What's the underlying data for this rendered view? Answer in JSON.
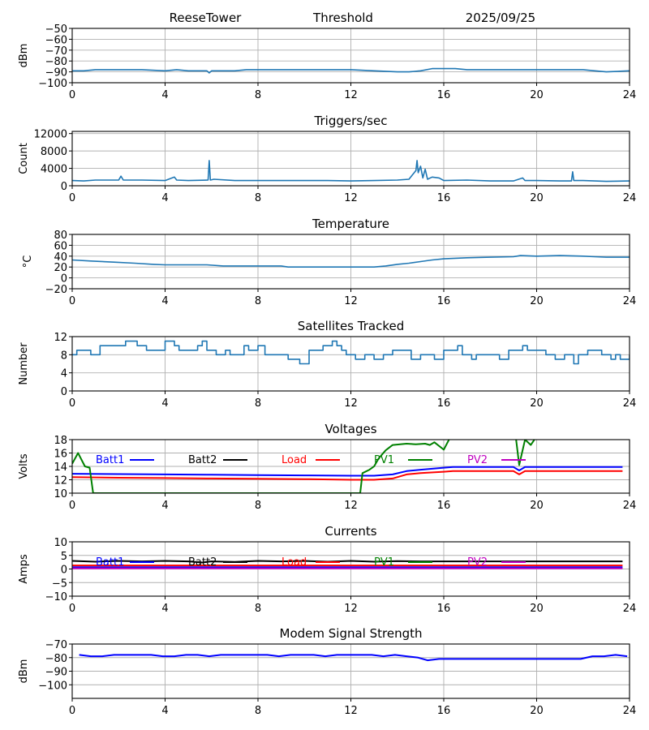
{
  "header": {
    "station": "ReeseTower",
    "mode": "Threshold",
    "date": "2025/09/25"
  },
  "colors": {
    "default": "#1f77b4",
    "batt1": "#0000ff",
    "batt2": "#000000",
    "load": "#ff0000",
    "pv1": "#008000",
    "pv2": "#bf00bf",
    "grid": "#b0b0b0"
  },
  "chart_data": [
    {
      "type": "line",
      "title": "",
      "xlabel": "",
      "ylabel": "dBm",
      "xlim": [
        0,
        24
      ],
      "ylim": [
        -100,
        -50
      ],
      "xticks": [
        "0",
        "4",
        "8",
        "12",
        "16",
        "20",
        "24"
      ],
      "yticks": [
        "-50",
        "-60",
        "-70",
        "-80",
        "-90",
        "-100"
      ],
      "grid": true,
      "series": [
        {
          "name": "Threshold",
          "color": "#1f77b4",
          "x": [
            0,
            0.5,
            1,
            2,
            3,
            4,
            4.5,
            5,
            5.8,
            5.9,
            6,
            7,
            7.5,
            8,
            9,
            10,
            11,
            12,
            13,
            14,
            14.5,
            15,
            15.5,
            16,
            16.5,
            17,
            18,
            19,
            20,
            21,
            22,
            22.5,
            23,
            24
          ],
          "y": [
            -89,
            -89,
            -88,
            -88,
            -88,
            -89,
            -88,
            -89,
            -89,
            -91,
            -89,
            -89,
            -88,
            -88,
            -88,
            -88,
            -88,
            -88,
            -89,
            -90,
            -90,
            -89,
            -87,
            -87,
            -87,
            -88,
            -88,
            -88,
            -88,
            -88,
            -88,
            -89,
            -90,
            -89
          ]
        }
      ]
    },
    {
      "type": "line",
      "title": "Triggers/sec",
      "xlabel": "",
      "ylabel": "Count",
      "xlim": [
        0,
        24
      ],
      "ylim": [
        0,
        12500
      ],
      "xticks": [
        "0",
        "4",
        "8",
        "12",
        "16",
        "20",
        "24"
      ],
      "yticks": [
        "12000",
        "8000",
        "4000",
        "0"
      ],
      "grid": true,
      "series": [
        {
          "name": "Triggers",
          "color": "#1f77b4",
          "x": [
            0,
            0.5,
            1,
            2,
            2.1,
            2.2,
            3,
            4,
            4.4,
            4.5,
            5,
            5.85,
            5.9,
            5.95,
            6.1,
            7,
            8,
            9,
            10,
            11,
            12,
            13,
            14,
            14.5,
            14.8,
            14.85,
            14.9,
            15.0,
            15.1,
            15.2,
            15.3,
            15.5,
            15.8,
            16,
            17,
            18,
            19,
            19.4,
            19.5,
            20,
            21,
            21.5,
            21.55,
            21.6,
            22,
            23,
            24
          ],
          "y": [
            1200,
            1100,
            1300,
            1300,
            2200,
            1300,
            1300,
            1200,
            2000,
            1300,
            1200,
            1300,
            5800,
            1300,
            1500,
            1200,
            1200,
            1200,
            1200,
            1200,
            1100,
            1200,
            1300,
            1500,
            3500,
            5800,
            3000,
            4500,
            1800,
            3800,
            1500,
            2000,
            1800,
            1200,
            1300,
            1100,
            1100,
            1800,
            1200,
            1200,
            1100,
            1100,
            3200,
            1200,
            1200,
            1000,
            1100
          ]
        }
      ]
    },
    {
      "type": "line",
      "title": "Temperature",
      "xlabel": "",
      "ylabel": "°C",
      "xlim": [
        0,
        24
      ],
      "ylim": [
        -20,
        80
      ],
      "xticks": [
        "0",
        "4",
        "8",
        "12",
        "16",
        "20",
        "24"
      ],
      "yticks": [
        "80",
        "60",
        "40",
        "20",
        "0",
        "-20"
      ],
      "grid": true,
      "series": [
        {
          "name": "Temperature",
          "color": "#1f77b4",
          "x": [
            0,
            0.8,
            1.8,
            2.7,
            3.5,
            4,
            5.8,
            6.5,
            9,
            9.3,
            13,
            13.5,
            14,
            14.5,
            15,
            15.5,
            16,
            17,
            18,
            19,
            19.3,
            20,
            21,
            22,
            22.5,
            23,
            24
          ],
          "y": [
            33,
            31,
            29,
            27,
            25,
            24,
            24,
            22,
            22,
            20,
            20,
            22,
            25,
            27,
            30,
            33,
            35,
            37,
            38,
            39,
            41,
            40,
            41,
            40,
            39,
            38,
            38
          ]
        }
      ]
    },
    {
      "type": "line",
      "title": "Satellites Tracked",
      "xlabel": "",
      "ylabel": "Number",
      "xlim": [
        0,
        24
      ],
      "ylim": [
        0,
        12
      ],
      "xticks": [
        "0",
        "4",
        "8",
        "12",
        "16",
        "20",
        "24"
      ],
      "yticks": [
        "12",
        "8",
        "4",
        "0"
      ],
      "grid": true,
      "series": [
        {
          "name": "Satellites",
          "color": "#1f77b4",
          "step": true,
          "x": [
            0,
            0.2,
            0.8,
            1.2,
            1.8,
            2.3,
            2.8,
            3.2,
            4.0,
            4.4,
            4.6,
            5.0,
            5.4,
            5.6,
            5.8,
            6.2,
            6.6,
            6.8,
            7.4,
            7.6,
            8.0,
            8.3,
            8.6,
            9.3,
            9.8,
            10.2,
            10.4,
            10.8,
            11.2,
            11.4,
            11.6,
            11.8,
            12.2,
            12.6,
            13.0,
            13.4,
            13.8,
            14.6,
            15.0,
            15.6,
            16.0,
            16.6,
            16.8,
            17.2,
            17.4,
            18.4,
            18.8,
            19.0,
            19.4,
            19.6,
            19.8,
            20.4,
            20.8,
            21.2,
            21.6,
            21.8,
            22.2,
            22.8,
            23.2,
            23.4,
            23.6,
            24
          ],
          "y": [
            8,
            9,
            8,
            10,
            10,
            11,
            10,
            9,
            11,
            10,
            9,
            9,
            10,
            11,
            9,
            8,
            9,
            8,
            10,
            9,
            10,
            8,
            8,
            7,
            6,
            9,
            9,
            10,
            11,
            10,
            9,
            8,
            7,
            8,
            7,
            8,
            9,
            7,
            8,
            7,
            9,
            10,
            8,
            7,
            8,
            7,
            9,
            9,
            10,
            9,
            9,
            8,
            7,
            8,
            6,
            8,
            9,
            8,
            7,
            8,
            7,
            8
          ]
        }
      ]
    },
    {
      "type": "line",
      "title": "Voltages",
      "xlabel": "",
      "ylabel": "Volts",
      "xlim": [
        0,
        24
      ],
      "ylim": [
        10,
        18
      ],
      "xticks": [
        "0",
        "4",
        "8",
        "12",
        "16",
        "20",
        "24"
      ],
      "yticks": [
        "18",
        "16",
        "14",
        "12",
        "10"
      ],
      "grid": true,
      "legend": [
        "Batt1",
        "Batt2",
        "Load",
        "PV1",
        "PV2"
      ],
      "legend_placement": "top",
      "series": [
        {
          "name": "Batt1",
          "color": "#0000ff",
          "x": [
            0,
            2,
            4,
            6,
            8,
            10,
            12,
            13,
            13.8,
            14.4,
            15,
            16,
            16.4,
            18,
            19,
            19.25,
            19.5,
            20,
            22,
            23.7
          ],
          "y": [
            12.9,
            12.85,
            12.8,
            12.75,
            12.7,
            12.65,
            12.6,
            12.6,
            12.8,
            13.3,
            13.5,
            13.8,
            13.9,
            13.9,
            13.9,
            13.4,
            13.9,
            13.9,
            13.9,
            13.9
          ]
        },
        {
          "name": "Batt2",
          "color": "#000000",
          "x": [],
          "y": []
        },
        {
          "name": "Load",
          "color": "#ff0000",
          "x": [
            0,
            2,
            4,
            6,
            8,
            10,
            12,
            13,
            13.8,
            14.4,
            15,
            16,
            16.4,
            18,
            19,
            19.25,
            19.5,
            20,
            22,
            23.7
          ],
          "y": [
            12.4,
            12.3,
            12.25,
            12.2,
            12.15,
            12.1,
            12.0,
            12.0,
            12.2,
            12.8,
            13.0,
            13.2,
            13.3,
            13.3,
            13.3,
            12.8,
            13.3,
            13.3,
            13.3,
            13.3
          ]
        },
        {
          "name": "PV1",
          "color": "#008000",
          "x": [
            0,
            0.25,
            0.55,
            0.75,
            0.9,
            12.4,
            12.5,
            12.8,
            13.0,
            13.2,
            13.5,
            13.8,
            14.4,
            14.8,
            15.2,
            15.4,
            15.6,
            16.0,
            16.3,
            19.1,
            19.25,
            19.5,
            19.75,
            20.0
          ],
          "y": [
            14.4,
            16.0,
            14.0,
            13.8,
            10.0,
            10.0,
            13.0,
            13.5,
            14.0,
            15.2,
            16.4,
            17.2,
            17.4,
            17.3,
            17.4,
            17.2,
            17.6,
            16.5,
            18.5,
            18.5,
            14.2,
            18.0,
            17.2,
            18.5
          ]
        },
        {
          "name": "PV2",
          "color": "#bf00bf",
          "x": [],
          "y": []
        }
      ]
    },
    {
      "type": "line",
      "title": "Currents",
      "xlabel": "",
      "ylabel": "Amps",
      "xlim": [
        0,
        24
      ],
      "ylim": [
        -10,
        10
      ],
      "xticks": [
        "0",
        "4",
        "8",
        "12",
        "16",
        "20",
        "24"
      ],
      "yticks": [
        "10",
        "5",
        "0",
        "-5",
        "-10"
      ],
      "grid": true,
      "legend": [
        "Batt1",
        "Batt2",
        "Load",
        "PV1",
        "PV2"
      ],
      "legend_placement": "top",
      "series": [
        {
          "name": "Batt1",
          "color": "#0000ff",
          "x": [
            0,
            23.7
          ],
          "y": [
            0.7,
            0.7
          ]
        },
        {
          "name": "Batt2",
          "color": "#000000",
          "x": [
            0,
            1,
            2,
            3,
            4,
            5,
            5.6,
            6,
            7,
            8,
            9,
            10,
            11,
            12,
            13,
            14,
            15,
            16,
            20,
            23.7
          ],
          "y": [
            3.0,
            2.7,
            3.0,
            2.8,
            3.0,
            2.8,
            2.4,
            2.8,
            2.6,
            3.0,
            2.8,
            3.0,
            2.7,
            3.0,
            2.7,
            2.9,
            2.8,
            2.8,
            2.8,
            2.8
          ]
        },
        {
          "name": "Load",
          "color": "#ff0000",
          "x": [
            0,
            23.7
          ],
          "y": [
            1.3,
            1.3
          ]
        },
        {
          "name": "PV1",
          "color": "#008000",
          "x": [],
          "y": []
        },
        {
          "name": "PV2",
          "color": "#bf00bf",
          "x": [
            0,
            23.7
          ],
          "y": [
            0.2,
            0.2
          ]
        }
      ]
    },
    {
      "type": "line",
      "title": "Modem Signal Strength",
      "xlabel": "",
      "ylabel": "dBm",
      "xlim": [
        0,
        24
      ],
      "ylim": [
        -110,
        -70
      ],
      "xticks": [
        "0",
        "4",
        "8",
        "12",
        "16",
        "20",
        "24"
      ],
      "yticks": [
        "-70",
        "-80",
        "-90",
        "-100"
      ],
      "grid": true,
      "series": [
        {
          "name": "Modem",
          "color": "#0000ff",
          "x": [
            0.3,
            0.8,
            1.3,
            1.8,
            2.3,
            2.9,
            3.4,
            3.9,
            4.4,
            4.9,
            5.4,
            5.9,
            6.4,
            6.9,
            7.4,
            7.9,
            8.4,
            8.9,
            9.4,
            9.9,
            10.4,
            10.9,
            11.4,
            11.9,
            12.4,
            12.9,
            13.4,
            13.9,
            14.4,
            14.9,
            15.3,
            15.8,
            16.3,
            20,
            21.9,
            22.4,
            22.9,
            23.4,
            23.9
          ],
          "y": [
            -78,
            -79,
            -79,
            -78,
            -78,
            -78,
            -78,
            -79,
            -79,
            -78,
            -78,
            -79,
            -78,
            -78,
            -78,
            -78,
            -78,
            -79,
            -78,
            -78,
            -78,
            -79,
            -78,
            -78,
            -78,
            -78,
            -79,
            -78,
            -79,
            -80,
            -82,
            -81,
            -81,
            -81,
            -81,
            -79,
            -79,
            -78,
            -79
          ]
        }
      ]
    }
  ]
}
